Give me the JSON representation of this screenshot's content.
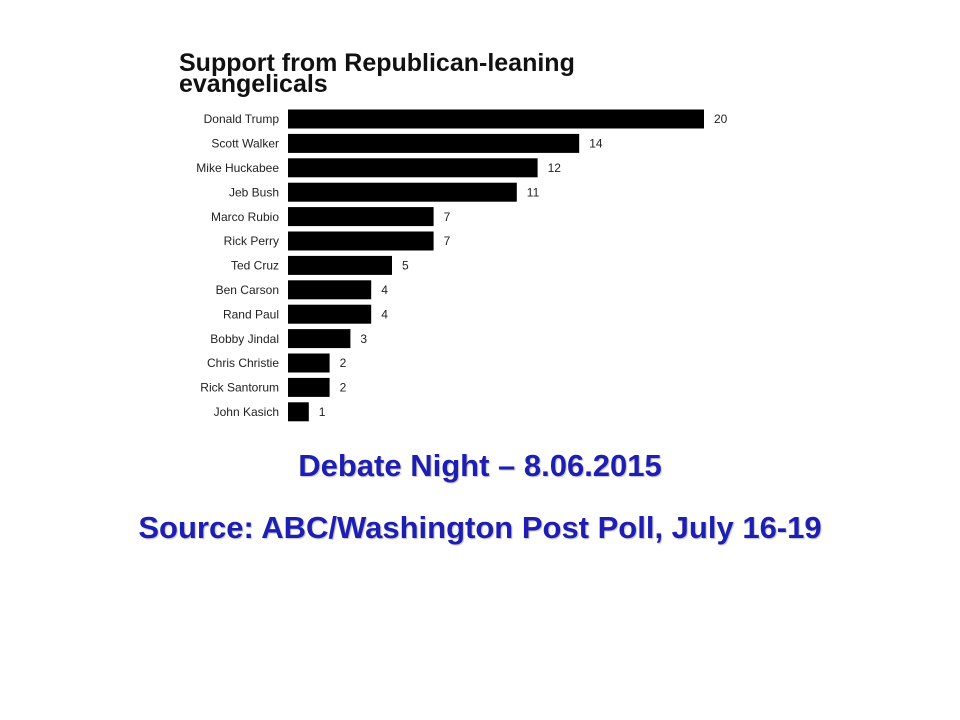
{
  "chart_data": {
    "type": "bar",
    "orientation": "horizontal",
    "title": "Support from Republican-leaning evangelicals",
    "categories": [
      "Donald Trump",
      "Scott Walker",
      "Mike Huckabee",
      "Jeb Bush",
      "Marco Rubio",
      "Rick Perry",
      "Ted Cruz",
      "Ben Carson",
      "Rand Paul",
      "Bobby Jindal",
      "Chris Christie",
      "Rick Santorum",
      "John Kasich"
    ],
    "values": [
      20,
      14,
      12,
      11,
      7,
      7,
      5,
      4,
      4,
      3,
      2,
      2,
      1
    ],
    "color": "#000000",
    "annotations": [
      "Debate Night – 8.06.2015",
      "Source: ABC/Washington Post Poll, July 16-19"
    ]
  }
}
